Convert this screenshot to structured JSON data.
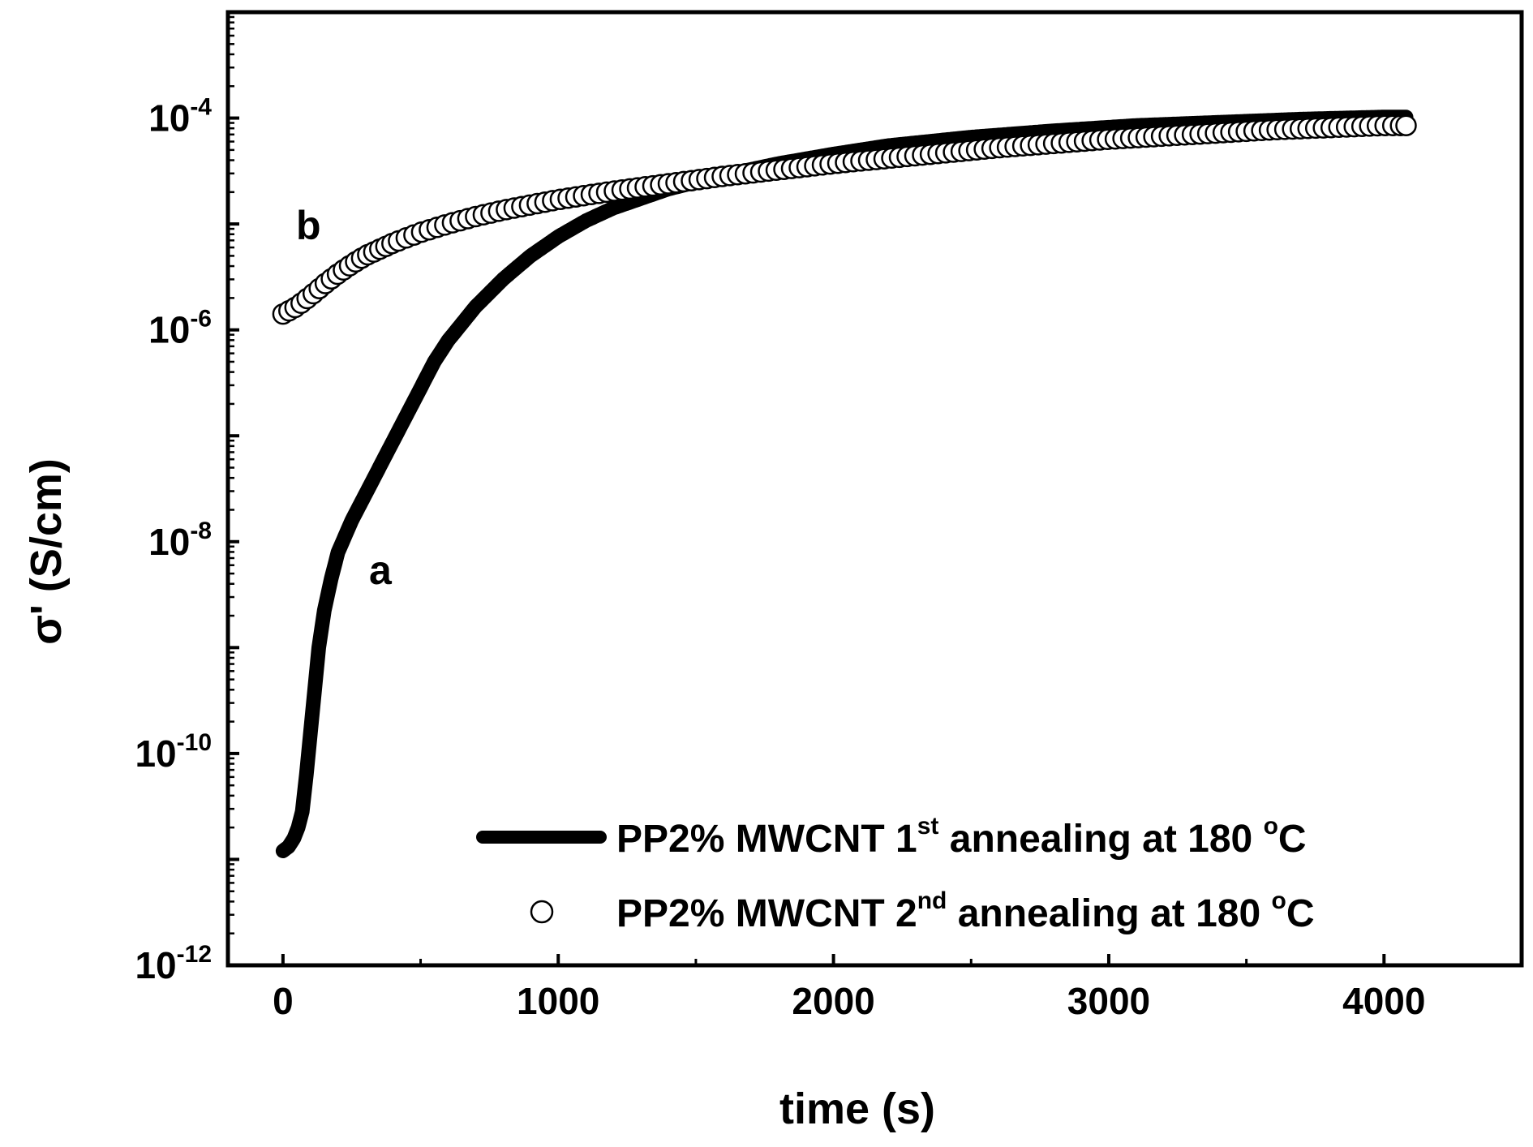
{
  "chart_data": {
    "type": "scatter",
    "xlabel": "time (s)",
    "ylabel": "σ' (S/cm)",
    "xlim": [
      -200,
      4500
    ],
    "ylim_log10": [
      -12,
      -3
    ],
    "x_ticks": [
      0,
      1000,
      2000,
      3000,
      4000
    ],
    "x_tick_labels": [
      "0",
      "1000",
      "2000",
      "3000",
      "4000"
    ],
    "y_ticks_log10": [
      -12,
      -10,
      -8,
      -6,
      -4
    ],
    "y_tick_labels": [
      {
        "base": "10",
        "exp": "-12"
      },
      {
        "base": "10",
        "exp": "-10"
      },
      {
        "base": "10",
        "exp": "-8"
      },
      {
        "base": "10",
        "exp": "-6"
      },
      {
        "base": "10",
        "exp": "-4"
      }
    ],
    "series": [
      {
        "name": "PP2% MWCNT 1st annealing at 180 °C",
        "legend": {
          "prefix": "PP2% MWCNT 1",
          "sup": "st",
          "suffix": " annealing at 180 ",
          "sup2": "o",
          "suffix2": "C"
        },
        "label": "a",
        "style": "thick-line",
        "x": [
          0,
          20,
          40,
          55,
          70,
          85,
          100,
          115,
          130,
          150,
          175,
          200,
          250,
          300,
          350,
          400,
          450,
          500,
          550,
          600,
          700,
          800,
          900,
          1000,
          1100,
          1200,
          1400,
          1600,
          1800,
          2000,
          2200,
          2500,
          2800,
          3100,
          3400,
          3700,
          4000,
          4080
        ],
        "log10_y": [
          -10.92,
          -10.88,
          -10.8,
          -10.7,
          -10.55,
          -10.2,
          -9.8,
          -9.4,
          -9.0,
          -8.65,
          -8.35,
          -8.1,
          -7.8,
          -7.55,
          -7.3,
          -7.05,
          -6.8,
          -6.55,
          -6.3,
          -6.1,
          -5.78,
          -5.52,
          -5.3,
          -5.12,
          -4.97,
          -4.85,
          -4.67,
          -4.54,
          -4.43,
          -4.34,
          -4.26,
          -4.18,
          -4.12,
          -4.07,
          -4.04,
          -4.01,
          -3.99,
          -3.99
        ]
      },
      {
        "name": "PP2% MWCNT 2nd annealing at 180 °C",
        "legend": {
          "prefix": "PP2% MWCNT 2",
          "sup": "nd",
          "suffix": " annealing at 180 ",
          "sup2": "o",
          "suffix2": "C"
        },
        "label": "b",
        "style": "open-circle",
        "x": [
          0,
          50,
          100,
          150,
          200,
          250,
          300,
          400,
          500,
          600,
          700,
          800,
          900,
          1000,
          1200,
          1400,
          1600,
          1800,
          2000,
          2200,
          2400,
          2600,
          2800,
          3000,
          3200,
          3400,
          3600,
          3800,
          4000,
          4080
        ],
        "log10_y": [
          -5.85,
          -5.78,
          -5.68,
          -5.57,
          -5.47,
          -5.38,
          -5.3,
          -5.18,
          -5.08,
          -5.0,
          -4.93,
          -4.87,
          -4.82,
          -4.77,
          -4.69,
          -4.62,
          -4.55,
          -4.49,
          -4.43,
          -4.38,
          -4.33,
          -4.28,
          -4.24,
          -4.2,
          -4.17,
          -4.14,
          -4.11,
          -4.09,
          -4.07,
          -4.07
        ]
      }
    ]
  }
}
